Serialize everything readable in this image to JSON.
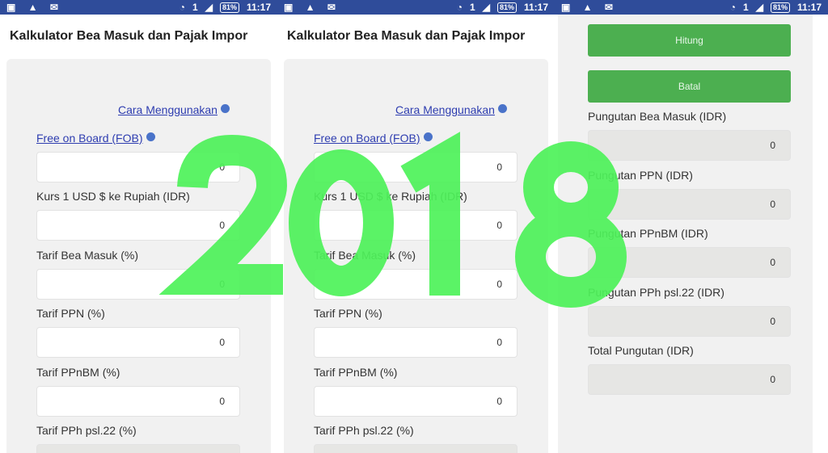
{
  "status_bar": {
    "time": "11:17",
    "battery": "81%",
    "sim": "1"
  },
  "app_title": "Kalkulator Bea Masuk dan Pajak Impor",
  "help_link": "Cara Menggunakan",
  "form": {
    "fob_label": "Free on Board (FOB)",
    "fob_value": "0",
    "fields": [
      {
        "label": "Kurs 1 USD $ ke Rupiah (IDR)",
        "value": "0"
      },
      {
        "label": "Tarif Bea Masuk (%)",
        "value": "0"
      },
      {
        "label": "Tarif PPN (%)",
        "value": "0"
      },
      {
        "label": "Tarif PPnBM (%)",
        "value": "0"
      },
      {
        "label": "Tarif PPh psl.22 (%)",
        "value": ""
      }
    ]
  },
  "buttons": {
    "calculate": "Hitung",
    "cancel": "Batal"
  },
  "results": [
    {
      "label": "Pungutan Bea Masuk (IDR)",
      "value": "0"
    },
    {
      "label": "Pungutan PPN (IDR)",
      "value": "0"
    },
    {
      "label": "Pungutan PPnBM (IDR)",
      "value": "0"
    },
    {
      "label": "Pungutan PPh psl.22 (IDR)",
      "value": "0"
    },
    {
      "label": "Total Pungutan (IDR)",
      "value": "0"
    }
  ],
  "overlay_text": "2018",
  "colors": {
    "status_bar": "#2f4c9a",
    "button": "#4caf50",
    "overlay": "#4ef25a",
    "link": "#2e3db0"
  }
}
